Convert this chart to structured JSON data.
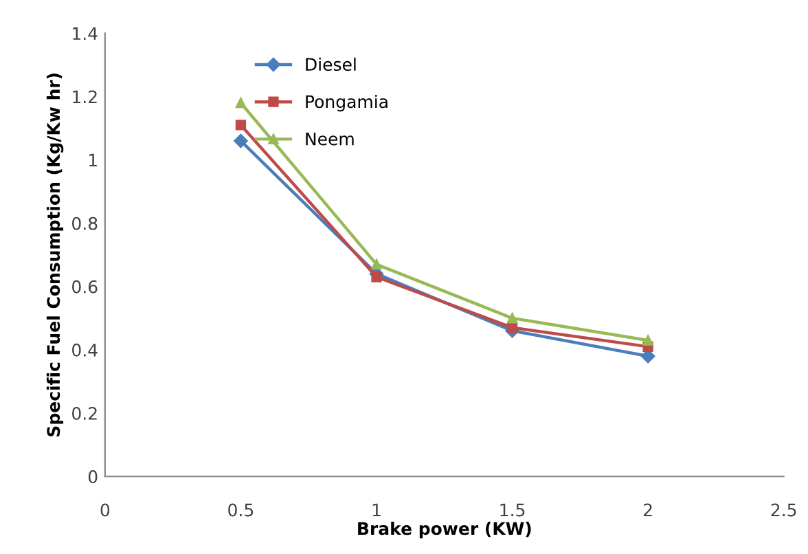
{
  "chart_data": {
    "type": "line",
    "xlabel": "Brake power (KW)",
    "ylabel": "Specific Fuel Consumption (Kg/Kw hr)",
    "x": [
      0.5,
      1,
      1.5,
      2
    ],
    "series": [
      {
        "name": "Diesel",
        "color": "#4a7ebb",
        "marker": "diamond",
        "values": [
          1.06,
          0.64,
          0.46,
          0.38
        ]
      },
      {
        "name": "Pongamia",
        "color": "#be4b48",
        "marker": "square",
        "values": [
          1.11,
          0.63,
          0.47,
          0.41
        ]
      },
      {
        "name": "Neem",
        "color": "#98b954",
        "marker": "triangle",
        "values": [
          1.18,
          0.67,
          0.5,
          0.43
        ]
      }
    ],
    "xlim": [
      0,
      2.5
    ],
    "xticks": [
      0,
      0.5,
      1,
      1.5,
      2,
      2.5
    ],
    "ylim": [
      0,
      1.4
    ],
    "yticks": [
      0,
      0.2,
      0.4,
      0.6,
      0.8,
      1,
      1.2,
      1.4
    ],
    "grid": false,
    "legend": "top left",
    "line_style": "solid"
  }
}
